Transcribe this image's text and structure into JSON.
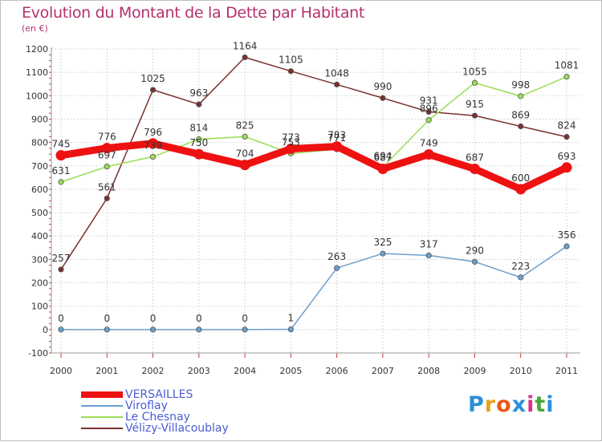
{
  "title": "Evolution du Montant de la Dette par Habitant",
  "subtitle": "(en €)",
  "logo": {
    "letters": [
      "P",
      "r",
      "o",
      "x",
      "i",
      "t",
      "i"
    ],
    "colors": [
      "#2b8fd8",
      "#e8a21b",
      "#e85a1b",
      "#2b8fd8",
      "#d8308f",
      "#4aa83a",
      "#2b8fd8"
    ]
  },
  "chart_data": {
    "type": "line",
    "title": "Evolution du Montant de la Dette par Habitant",
    "ylabel": "(en €)",
    "x": [
      "2000",
      "2001",
      "2002",
      "2003",
      "2004",
      "2005",
      "2006",
      "2007",
      "2008",
      "2009",
      "2010",
      "2011"
    ],
    "ylim": [
      -100,
      1200
    ],
    "yticks": [
      "-100",
      "0",
      "100",
      "200",
      "300",
      "400",
      "500",
      "600",
      "700",
      "800",
      "900",
      "1000",
      "1100",
      "1200"
    ],
    "grid": true,
    "legend_position": "bottom-left",
    "series": [
      {
        "name": "VERSAILLES",
        "color": "#ee1111",
        "values": [
          745,
          776,
          796,
          750,
          704,
          773,
          783,
          687,
          749,
          687,
          600,
          693
        ],
        "labels": [
          "745",
          "776",
          "796",
          "750",
          "704",
          "773",
          "783",
          "687",
          "749",
          "687",
          "600",
          "693"
        ]
      },
      {
        "name": "Viroflay",
        "color": "#6a9fcf",
        "values": [
          0,
          0,
          0,
          0,
          0,
          1,
          263,
          325,
          317,
          290,
          223,
          356
        ],
        "labels": [
          "0",
          "0",
          "0",
          "0",
          "0",
          "1",
          "263",
          "325",
          "317",
          "290",
          "223",
          "356"
        ]
      },
      {
        "name": "Le Chesnay",
        "color": "#99dd55",
        "values": [
          631,
          697,
          739,
          814,
          825,
          753,
          771,
          694,
          896,
          1055,
          998,
          1081
        ],
        "labels": [
          "631",
          "697",
          "739",
          "814",
          "825",
          "753",
          "771",
          "694",
          "896",
          "1055",
          "998",
          "1081"
        ]
      },
      {
        "name": "Vélizy-Villacoublay",
        "color": "#7a3030",
        "values": [
          257,
          561,
          1025,
          963,
          1164,
          1105,
          1048,
          990,
          931,
          915,
          869,
          824
        ],
        "labels": [
          "257",
          "561",
          "1025",
          "963",
          "1164",
          "1105",
          "1048",
          "990",
          "931",
          "915",
          "869",
          "824"
        ]
      }
    ]
  }
}
